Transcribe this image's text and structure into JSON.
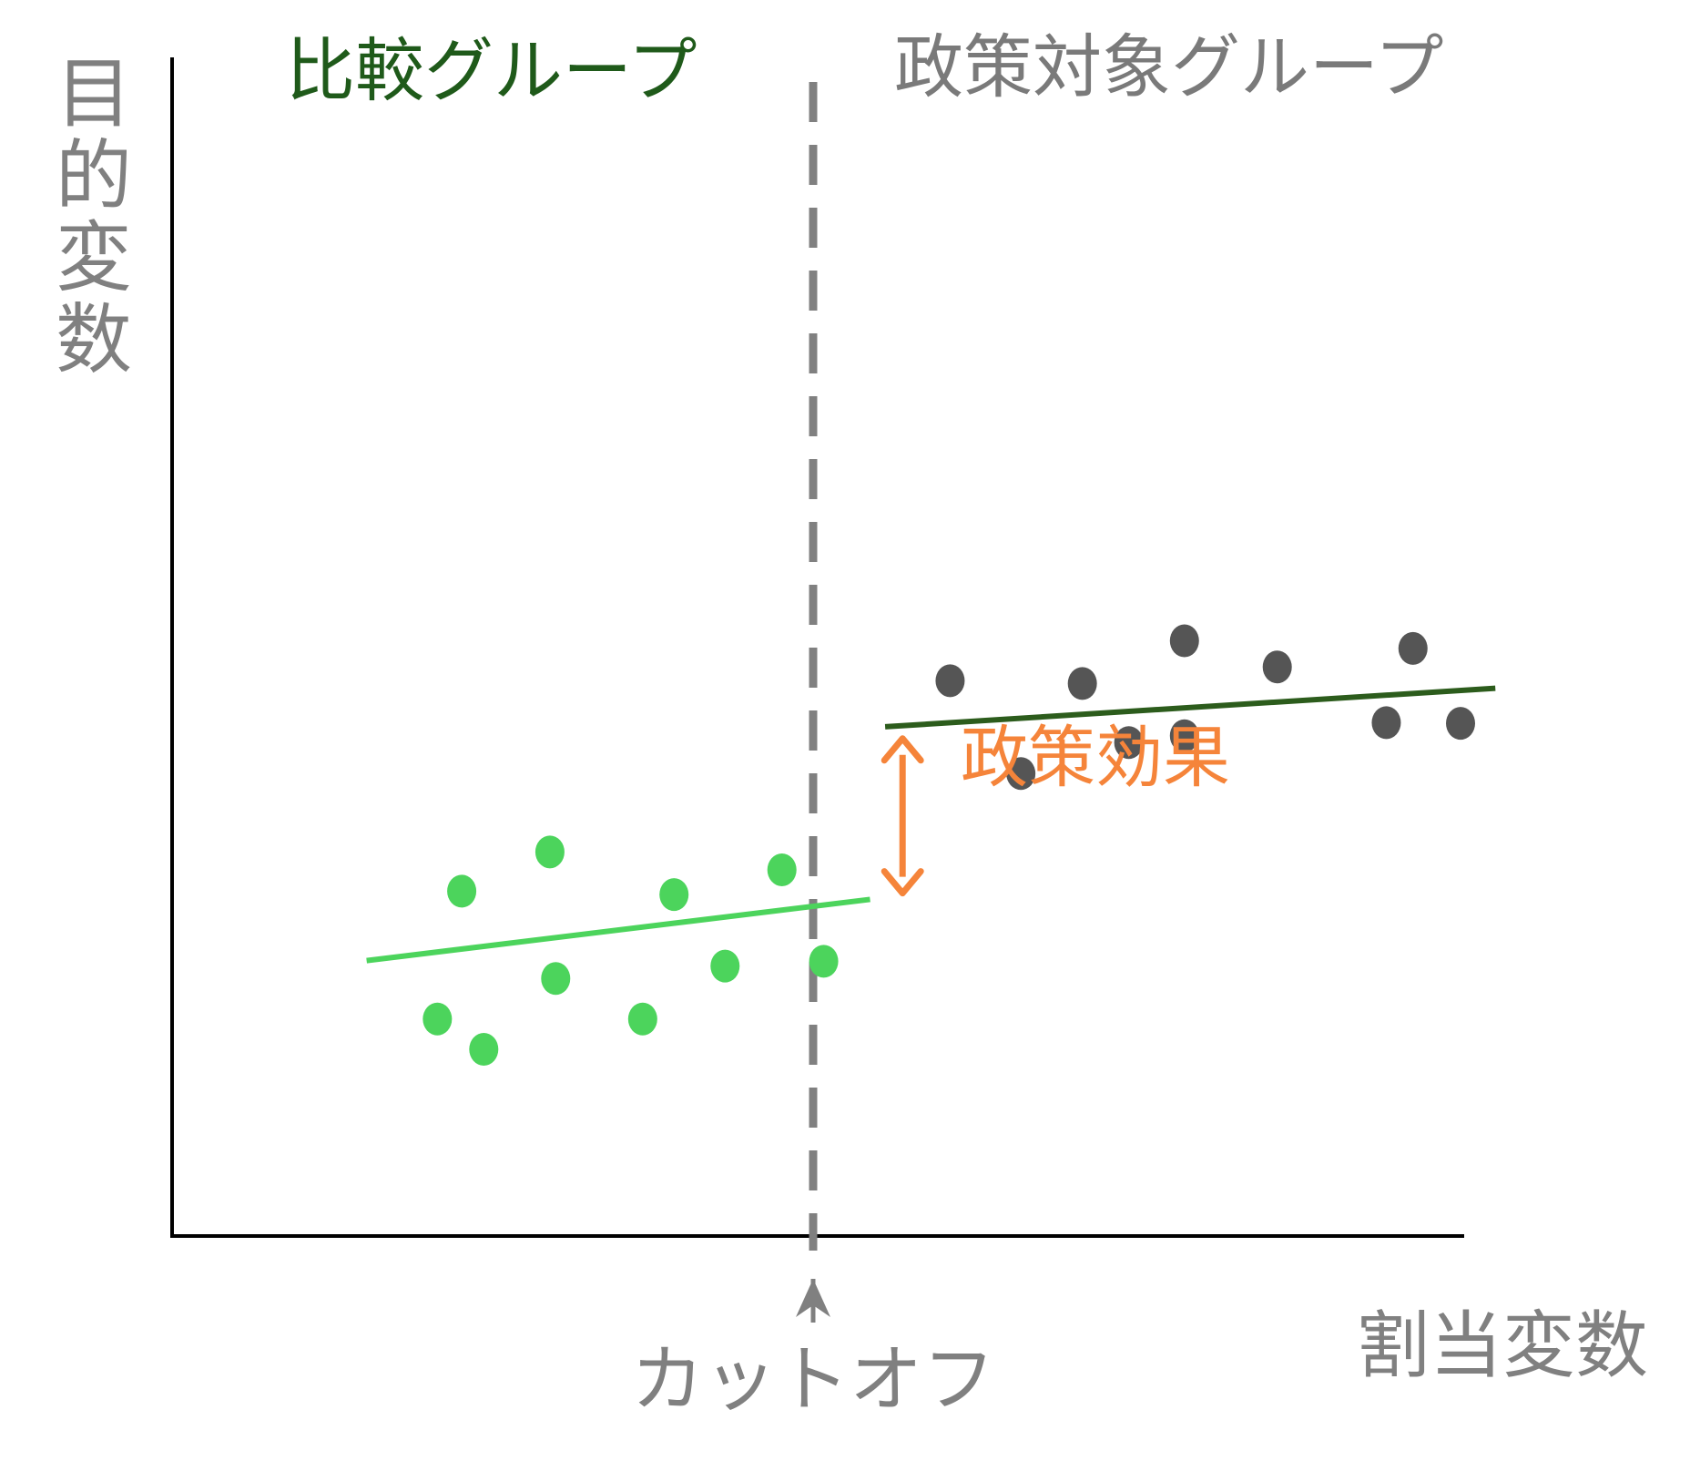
{
  "labels": {
    "y_axis": [
      "目",
      "的",
      "変",
      "数"
    ],
    "x_axis": "割当変数",
    "cutoff": "カットオフ",
    "comparison_group": "比較グループ",
    "treatment_group": "政策対象グループ",
    "policy_effect": "政策効果"
  },
  "colors": {
    "axis": "#000000",
    "cutoff_line": "#808080",
    "comparison_points": "#4cd45c",
    "comparison_fit": "#4cd45c",
    "comparison_label": "#1f5a1a",
    "treatment_points": "#555555",
    "treatment_fit": "#2c5c1c",
    "treatment_label": "#7a7a7a",
    "effect_arrow": "#f5843a",
    "effect_label": "#f5843a",
    "axis_label": "#808080"
  },
  "chart_data": {
    "type": "scatter",
    "x_range": [
      0,
      100
    ],
    "y_range": [
      0,
      100
    ],
    "cutoff_x": 50,
    "series": [
      {
        "name": "比較グループ",
        "points": [
          [
            11.8,
            14.2
          ],
          [
            15.8,
            9.8
          ],
          [
            13.9,
            32.8
          ],
          [
            22.0,
            20.1
          ],
          [
            21.5,
            38.5
          ],
          [
            29.5,
            14.2
          ],
          [
            32.2,
            32.3
          ],
          [
            36.6,
            21.9
          ],
          [
            41.5,
            35.9
          ],
          [
            45.1,
            22.6
          ]
        ],
        "fit": [
          [
            5.7,
            22.7
          ],
          [
            49.1,
            31.6
          ]
        ]
      },
      {
        "name": "政策対象グループ",
        "points": [
          [
            56.0,
            63.4
          ],
          [
            62.1,
            49.9
          ],
          [
            67.4,
            63.0
          ],
          [
            71.4,
            54.4
          ],
          [
            76.2,
            69.2
          ],
          [
            76.2,
            55.4
          ],
          [
            84.2,
            65.4
          ],
          [
            93.6,
            57.3
          ],
          [
            95.9,
            68.1
          ],
          [
            100.0,
            57.2
          ]
        ],
        "fit": [
          [
            50.4,
            56.7
          ],
          [
            103.0,
            62.3
          ]
        ]
      }
    ],
    "effect_arrow": {
      "x": 51.9,
      "y_from": 32.5,
      "y_to": 55.0
    }
  }
}
